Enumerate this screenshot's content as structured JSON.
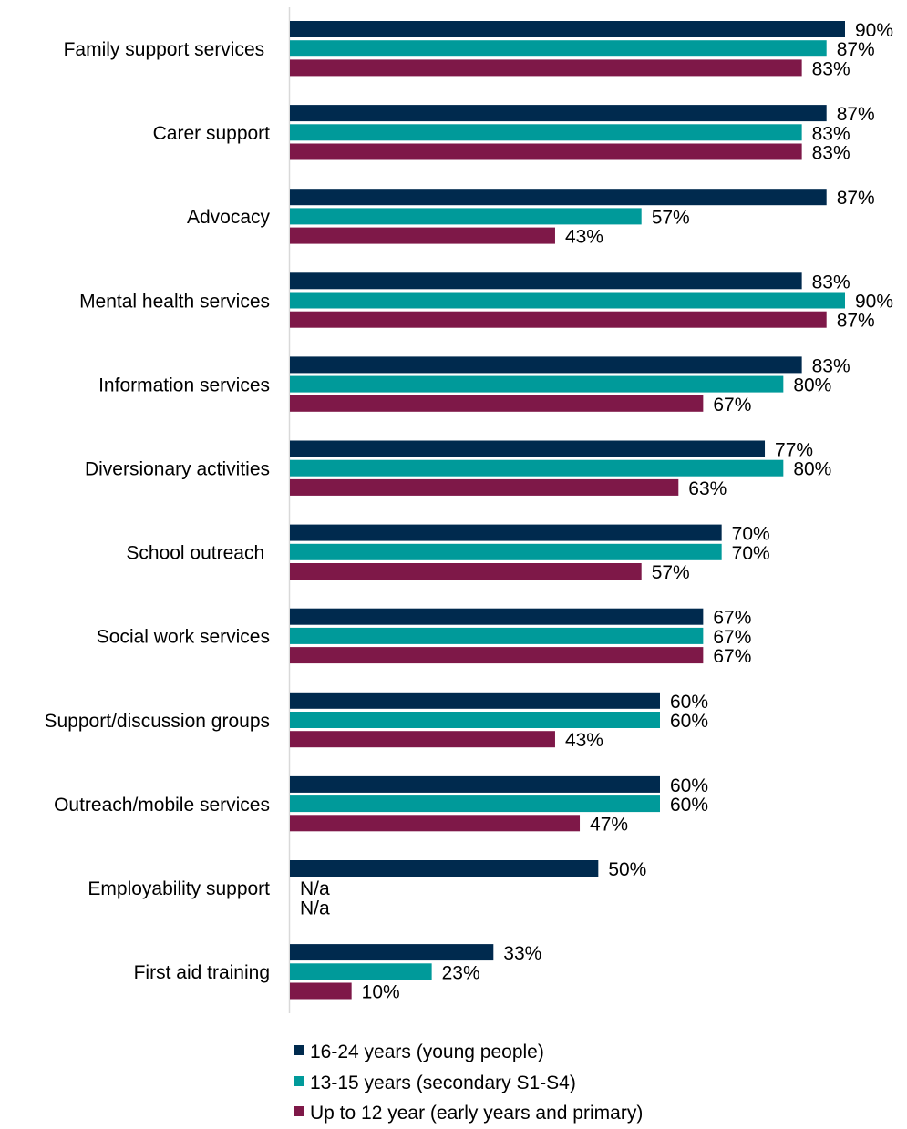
{
  "chart_data": {
    "type": "bar",
    "orientation": "horizontal",
    "categories": [
      "Family support services ",
      "Carer support",
      "Advocacy",
      "Mental health services",
      "Information services",
      "Diversionary activities",
      "School outreach ",
      "Social work services",
      "Support/discussion groups",
      "Outreach/mobile services",
      "Employability support",
      "First aid training"
    ],
    "series": [
      {
        "name": "16-24 years (young people)",
        "color": "#002A4E",
        "values": [
          90,
          87,
          87,
          83,
          83,
          77,
          70,
          67,
          60,
          60,
          50,
          33
        ]
      },
      {
        "name": "13-15 years (secondary S1-S4)",
        "color": "#009A9A",
        "values": [
          87,
          83,
          57,
          90,
          80,
          80,
          70,
          67,
          60,
          60,
          null,
          23
        ]
      },
      {
        "name": "Up to 12 year (early years and primary)",
        "color": "#7E1848",
        "values": [
          83,
          83,
          43,
          87,
          67,
          63,
          57,
          67,
          43,
          47,
          null,
          10
        ]
      }
    ],
    "missing_label": "N/a",
    "value_suffix": "%",
    "xlim": [
      0,
      100
    ],
    "grid": false,
    "legend_position": "bottom"
  }
}
